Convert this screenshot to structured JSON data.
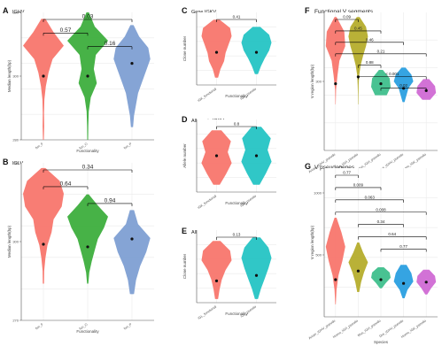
{
  "figure": {
    "panels": [
      {
        "letter": "A",
        "title": "IGHV"
      },
      {
        "letter": "B",
        "title": "IGLV"
      },
      {
        "letter": "C",
        "title": "Gene IGKV"
      },
      {
        "letter": "D",
        "title": "Allogenic IGKV"
      },
      {
        "letter": "E",
        "title": "Allogenic IGLV"
      },
      {
        "letter": "F",
        "title": "Functional V segments"
      },
      {
        "letter": "G",
        "title": "V pseudogenes"
      }
    ]
  },
  "colors": {
    "red": "#f8766d",
    "green": "#3dae3d",
    "blue": "#7e9fd3",
    "teal": "#25c4c4",
    "olive": "#b5ad2c",
    "mint": "#3fbf8c",
    "skyblue": "#2a9fe0",
    "violet": "#d06ad4",
    "grid": "#ebebeb",
    "axis": "#555555",
    "line": "#000000"
  },
  "chart_data": [
    {
      "panel": "A",
      "type": "violin",
      "title": "IGHV",
      "xlabel": "Functionality",
      "ylabel": "Median length(bp)",
      "categories": [
        "fun_F",
        "fun_O",
        "fun_P"
      ],
      "ylim": [
        280,
        320
      ],
      "yticks": [
        "280",
        "300",
        "320"
      ],
      "medians": [
        300,
        300,
        304
      ],
      "comparisons": [
        {
          "from": 0,
          "to": 2,
          "label": "0.03"
        },
        {
          "from": 0,
          "to": 1,
          "label": "0.57"
        },
        {
          "from": 1,
          "to": 2,
          "label": "0.16"
        }
      ]
    },
    {
      "panel": "B",
      "type": "violin",
      "title": "IGLV",
      "xlabel": "Functionality",
      "ylabel": "Median length(bp)",
      "categories": [
        "fun_F",
        "fun_O",
        "fun_P"
      ],
      "ylim": [
        270,
        330
      ],
      "yticks": [
        "270",
        "300",
        "330"
      ],
      "medians": [
        299,
        298,
        301
      ],
      "comparisons": [
        {
          "from": 0,
          "to": 2,
          "label": "0.34"
        },
        {
          "from": 0,
          "to": 1,
          "label": "0.64"
        },
        {
          "from": 1,
          "to": 2,
          "label": "0.94"
        }
      ]
    },
    {
      "panel": "C",
      "type": "violin",
      "title": "Gene IGKV",
      "xlabel": "Functionality",
      "ylabel": "Clone number",
      "categories": [
        "IGK_functional",
        "IGK_pseudo"
      ],
      "ylim": [
        0,
        40
      ],
      "medians": [
        18,
        18
      ],
      "comparisons": [
        {
          "from": 0,
          "to": 1,
          "label": "0.41"
        }
      ]
    },
    {
      "panel": "D",
      "type": "violin",
      "title": "Allogenic IGKV",
      "xlabel": "Functionality",
      "ylabel": "Allele number",
      "categories": [
        "IGK_functional",
        "IGK_pseudo"
      ],
      "ylim": [
        0,
        40
      ],
      "medians": [
        20,
        20
      ],
      "comparisons": [
        {
          "from": 0,
          "to": 1,
          "label": "0.8"
        }
      ]
    },
    {
      "panel": "E",
      "type": "violin",
      "title": "Allogenic IGLV",
      "xlabel": "Functionality",
      "ylabel": "Clone number",
      "categories": [
        "IGL_functional",
        "IGL_pseudo"
      ],
      "ylim": [
        0,
        40
      ],
      "medians": [
        12,
        15
      ],
      "comparisons": [
        {
          "from": 0,
          "to": 1,
          "label": "0.13"
        }
      ]
    },
    {
      "panel": "F",
      "type": "violin",
      "title": "Functional V segments",
      "xlabel": "Species",
      "ylabel": "V region length(bp)",
      "categories": [
        "Anser_IGHV_pseudo",
        "Homo_IGH_pseudo",
        "Mus_IGH_pseudo",
        "Dre_IGHV_pseudo",
        "Homo_IGK_pseudo"
      ],
      "ylim": [
        270,
        330
      ],
      "yticks": [
        "300"
      ],
      "medians": [
        299,
        302,
        299,
        297,
        296
      ],
      "comparisons": [
        {
          "from": 0,
          "to": 1,
          "label": "0.09"
        },
        {
          "from": 0,
          "to": 2,
          "label": "0.45"
        },
        {
          "from": 0,
          "to": 3,
          "label": "0.46"
        },
        {
          "from": 0,
          "to": 4,
          "label": "0.21"
        },
        {
          "from": 1,
          "to": 2,
          "label": "0.88"
        },
        {
          "from": 1,
          "to": 4,
          "label": "< 0.001"
        },
        {
          "from": 2,
          "to": 4,
          "label": "0.02"
        }
      ]
    },
    {
      "panel": "G",
      "type": "violin",
      "title": "V pseudogenes",
      "xlabel": "Species",
      "ylabel": "V region length(bp)",
      "categories": [
        "Anser_IGHV_pseudo",
        "Homo_IGH_pseudo",
        "Mus_IGH_pseudo",
        "Dre_IGHV_pseudo",
        "Homo_IGK_pseudo"
      ],
      "ylim": [
        0,
        1200
      ],
      "yticks": [
        "500",
        "1000"
      ],
      "medians": [
        300,
        370,
        300,
        270,
        280
      ],
      "comparisons": [
        {
          "from": 0,
          "to": 1,
          "label": "0.77"
        },
        {
          "from": 0,
          "to": 2,
          "label": "0.009"
        },
        {
          "from": 0,
          "to": 3,
          "label": "0.063"
        },
        {
          "from": 0,
          "to": 4,
          "label": "0.008"
        },
        {
          "from": 1,
          "to": 3,
          "label": "0.34"
        },
        {
          "from": 1,
          "to": 4,
          "label": "0.64"
        },
        {
          "from": 2,
          "to": 4,
          "label": "0.77"
        }
      ]
    }
  ]
}
